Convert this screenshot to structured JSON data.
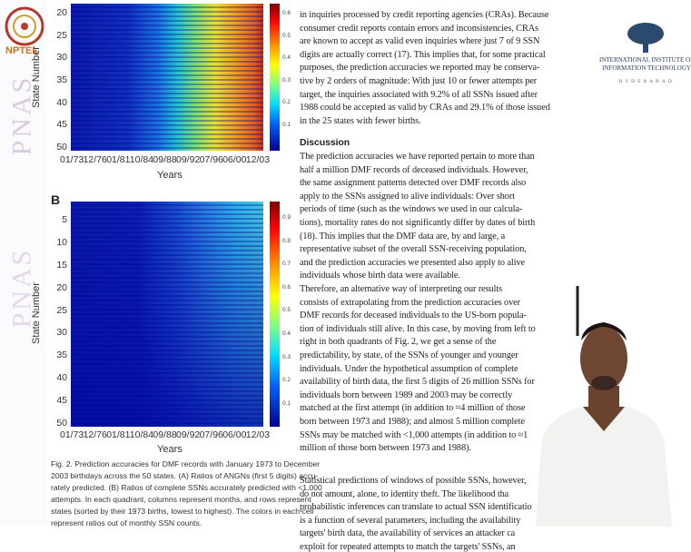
{
  "nptel": "NPTEL",
  "watermark": "PNAS",
  "figure": {
    "panel_a": {
      "y_label": "State Number",
      "x_label": "Years",
      "y_ticks": [
        "20",
        "25",
        "30",
        "35",
        "40",
        "45",
        "50"
      ],
      "x_ticks": [
        "01/73",
        "12/76",
        "01/81",
        "10/84",
        "09/88",
        "09/92",
        "07/96",
        "06/00",
        "12/03"
      ],
      "colorbar_ticks": [
        "0.6",
        "0.5",
        "0.4",
        "0.3",
        "0.2",
        "0.1"
      ]
    },
    "panel_b": {
      "letter": "B",
      "y_label": "State Number",
      "x_label": "Years",
      "y_ticks": [
        "5",
        "10",
        "15",
        "20",
        "25",
        "30",
        "35",
        "40",
        "45",
        "50"
      ],
      "x_ticks": [
        "01/73",
        "12/76",
        "01/81",
        "10/84",
        "09/88",
        "09/92",
        "07/96",
        "06/00",
        "12/03"
      ],
      "colorbar_ticks": [
        "0.9",
        "0.8",
        "0.7",
        "0.6",
        "0.5",
        "0.4",
        "0.3",
        "0.2",
        "0.1"
      ]
    },
    "caption": [
      "Fig. 2.   Prediction accuracies for DMF records with January 1973 to December",
      "2003 birthdays across the 50 states. (A) Ratios of ANGNs (first 5 digits) accu-",
      "rately predicted. (B) Ratios of complete SSNs accurately predicted with <1,000",
      "attempts. In each quadrant, columns represent months, and rows represent",
      "states (sorted by their 1973 births, lowest to highest). The colors in each cell",
      "represent ratios out of monthly SSN counts."
    ]
  },
  "column": {
    "paragraph_0": [
      "in inquiries processed by credit reporting agencies (CRAs). Because",
      "consumer credit reports contain errors and inconsistencies, CRAs",
      "are known to accept as valid even inquiries where just 7 of 9 SSN",
      "digits are actually correct (17). This implies that, for some practical",
      "purposes, the prediction accuracies we reported may be conserva-",
      "tive by 2 orders of magnitude: With just 10 or fewer attempts per",
      "target, the inquiries associated with 9.2% of all SSNs issued after",
      "1988 could be accepted as valid by CRAs and 29.1% of those issued",
      "in the 25 states with fewer births."
    ],
    "heading": "Discussion",
    "paragraph_1": [
      "The prediction accuracies we have reported pertain to more than",
      "half a million DMF records of deceased individuals. However,",
      "the same assignment patterns detected over DMF records also",
      "apply to the SSNs assigned to alive individuals: Over short",
      "periods of time (such as the windows we used in our calcula-",
      "tions), mortality rates do not significantly differ by dates of birth",
      "(18). This implies that the DMF data are, by and large, a",
      "representative subset of the overall SSN-receiving population,",
      "and the prediction accuracies we presented also apply to alive",
      "individuals whose birth data were available."
    ],
    "paragraph_2": [
      "Therefore, an alternative way of interpreting our results",
      "consists of extrapolating from the prediction accuracies over",
      "DMF records for deceased individuals to the US-born popula-",
      "tion of individuals still alive. In this case, by moving from left to",
      "right in both quadrants of Fig. 2, we get a sense of the",
      "predictability, by state, of the SSNs of younger and younger",
      "individuals. Under the hypothetical assumption of complete",
      "availability of birth data, the first 5 digits of 26 million SSNs for",
      "individuals born between 1989 and 2003 may be correctly",
      "matched at the first attempt (in addition to ≈4 million of those",
      "born between 1973 and 1988); and almost 5 million complete",
      "SSNs may be matched with <1,000 attempts (in addition to ≈1",
      "million of those born between 1973 and 1988)."
    ],
    "paragraph_3": [
      "Statistical predictions of windows of possible SSNs, however,",
      "do not amount, alone, to identity theft. The likelihood tha",
      "probabilistic inferences can translate to actual SSN identificatio",
      "is a function of several parameters, including the availability",
      "targets' birth data, the availability of services an attacker ca",
      "exploit for repeated attempts to match the targets' SSNs, an"
    ]
  },
  "logo": {
    "line_1": "INTERNATIONAL INSTITUTE OF",
    "line_2": "INFORMATION TECHNOLOGY",
    "line_3": "HYDERABAD"
  }
}
